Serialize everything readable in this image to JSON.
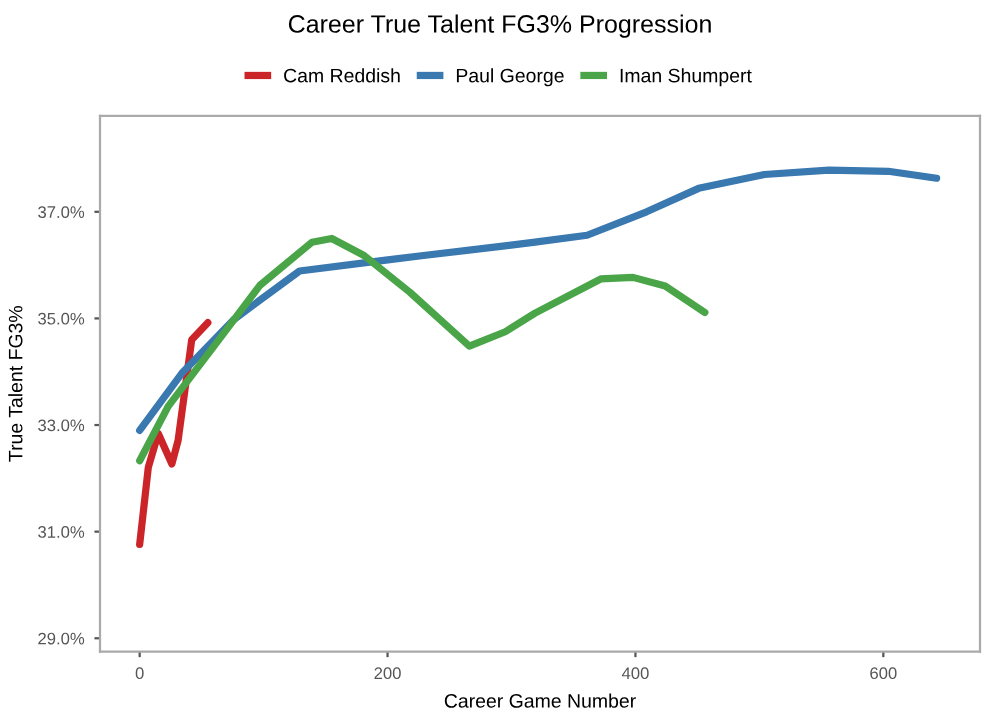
{
  "chart_data": {
    "type": "line",
    "title": "Career True Talent FG3% Progression",
    "xlabel": "Career Game Number",
    "ylabel": "True Talent FG3%",
    "series": [
      {
        "name": "Cam Reddish",
        "color": "#cc2529",
        "x": [
          0,
          7,
          15,
          26,
          31,
          42,
          55
        ],
        "values": [
          30.76,
          32.21,
          32.84,
          32.27,
          32.71,
          34.6,
          34.92
        ]
      },
      {
        "name": "Paul George",
        "color": "#3a78b0",
        "x": [
          0,
          34,
          76,
          129,
          197,
          229,
          298,
          319,
          361,
          409,
          451,
          504,
          556,
          604,
          643
        ],
        "values": [
          32.9,
          33.97,
          34.98,
          35.89,
          36.09,
          36.18,
          36.37,
          36.43,
          36.56,
          37.0,
          37.44,
          37.7,
          37.78,
          37.76,
          37.63
        ]
      },
      {
        "name": "Iman Shumpert",
        "color": "#4aa548",
        "x": [
          0,
          23,
          60,
          97,
          139,
          155,
          181,
          218,
          266,
          295,
          319,
          372,
          398,
          424,
          456
        ],
        "values": [
          32.33,
          33.35,
          34.48,
          35.62,
          36.43,
          36.5,
          36.18,
          35.49,
          34.48,
          34.75,
          35.1,
          35.74,
          35.77,
          35.61,
          35.11
        ]
      }
    ],
    "xlim": [
      -32,
      678
    ],
    "ylim": [
      28.75,
      38.8
    ],
    "xticks": [
      0,
      200,
      400,
      600
    ],
    "yticks": [
      {
        "value": 29,
        "label": "29.0%"
      },
      {
        "value": 31,
        "label": "31.0%"
      },
      {
        "value": 33,
        "label": "33.0%"
      },
      {
        "value": 35,
        "label": "35.0%"
      },
      {
        "value": 37,
        "label": "37.0%"
      }
    ],
    "legend": "top",
    "grid": false
  }
}
